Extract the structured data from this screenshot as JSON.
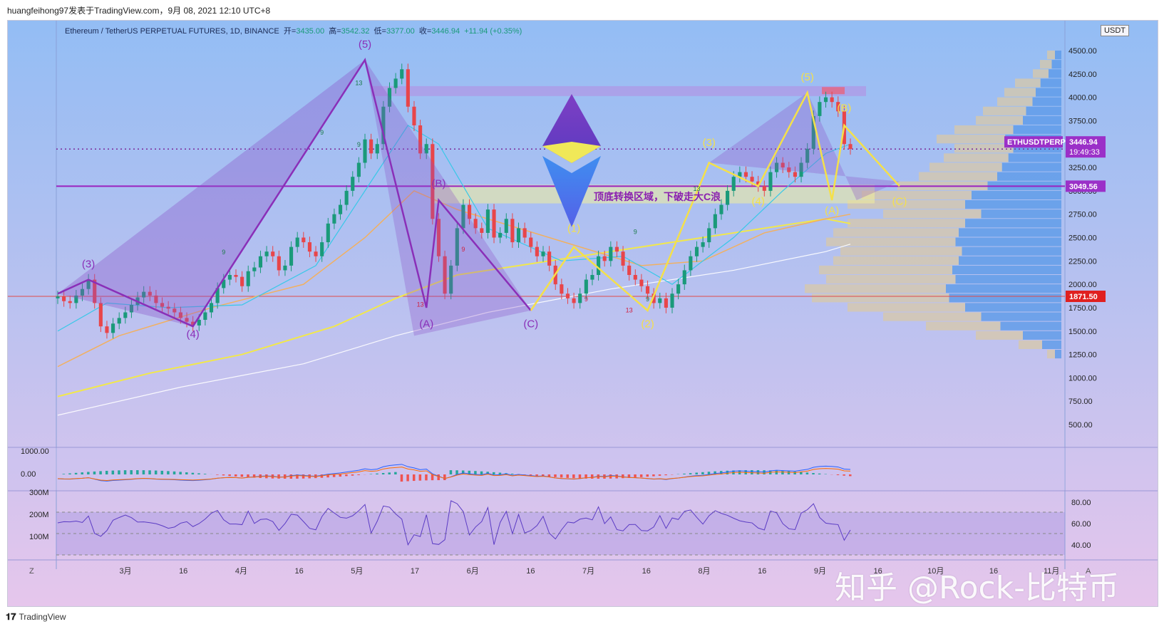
{
  "attribution": "huangfeihong97发表于TradingView.com，9月 08, 2021 12:10 UTC+8",
  "header": {
    "symbol": "Ethereum / TetherUS PERPETUAL FUTURES, 1D, BINANCE",
    "open_label": "开=",
    "open": "3435.00",
    "high_label": "高=",
    "high": "3542.32",
    "low_label": "低=",
    "low": "3377.00",
    "close_label": "收=",
    "close": "3446.94",
    "change": "+11.94 (+0.35%)"
  },
  "currency_button": "USDT",
  "footer": {
    "brand": "TradingView"
  },
  "watermark": "知乎 @Rock-比特币",
  "annotation": "顶底转换区域，下破走大C浪",
  "price_tags": {
    "symbol_tag": "ETHUSDTPERP",
    "last_price": "3446.94",
    "countdown": "19:49:33",
    "level_1": "3049.56",
    "level_2": "1871.50"
  },
  "colors": {
    "bg_top": "#93bdf4",
    "bg_bottom": "#e3c3ec",
    "purple_wave": "#8a2fb8",
    "yellow_wave": "#f4e04a",
    "red_line": "#e04a4a",
    "up_candle": "#1a9a7a",
    "down_candle": "#e8454a",
    "tag_purple": "#9b30c8",
    "tag_red": "#e02020"
  },
  "chart_data": {
    "type": "candlestick",
    "y_axis_ticks": [
      "4500.00",
      "4250.00",
      "4000.00",
      "3750.00",
      "3500.00",
      "3250.00",
      "3000.00",
      "2750.00",
      "2500.00",
      "2250.00",
      "2000.00",
      "1750.00",
      "1500.00",
      "1250.00",
      "1000.00",
      "750.00",
      "500.00"
    ],
    "ylim": [
      500,
      4500
    ],
    "x_axis_ticks": [
      "3月",
      "16",
      "4月",
      "16",
      "5月",
      "17",
      "6月",
      "16",
      "7月",
      "16",
      "8月",
      "16",
      "9月",
      "16",
      "10月",
      "16",
      "11月"
    ],
    "horizontal_levels": [
      3049.56,
      1871.5
    ],
    "last_price": 3446.94,
    "closes": [
      1870,
      1820,
      1800,
      1880,
      1950,
      2050,
      1800,
      1550,
      1480,
      1580,
      1640,
      1700,
      1780,
      1860,
      1920,
      1880,
      1800,
      1760,
      1740,
      1700,
      1640,
      1600,
      1560,
      1620,
      1700,
      1800,
      1960,
      2050,
      2100,
      2080,
      1980,
      2140,
      2180,
      2300,
      2350,
      2300,
      2150,
      2200,
      2400,
      2500,
      2450,
      2350,
      2300,
      2450,
      2650,
      2750,
      2850,
      3000,
      3150,
      3300,
      3550,
      3400,
      3500,
      3900,
      4100,
      4200,
      4300,
      3900,
      3700,
      3400,
      3500,
      2700,
      2300,
      1900,
      2200,
      2600,
      2850,
      2700,
      2600,
      2550,
      2800,
      2500,
      2550,
      2700,
      2450,
      2600,
      2500,
      2400,
      2300,
      2350,
      2200,
      2000,
      1900,
      1850,
      1800,
      1900,
      2050,
      2100,
      2300,
      2250,
      2400,
      2350,
      2200,
      2100,
      2050,
      1980,
      1900,
      1800,
      1850,
      1750,
      1900,
      2000,
      2150,
      2300,
      2400,
      2450,
      2600,
      2750,
      2850,
      3000,
      3150,
      3200,
      3150,
      3100,
      3050,
      3000,
      3200,
      3300,
      3250,
      3200,
      3150,
      3300,
      3450,
      3800,
      3950,
      4000,
      3950,
      3850,
      3500,
      3447
    ],
    "wave_labels_purple": [
      "(3)",
      "(4)",
      "(5)",
      "(A)",
      "(B)",
      "(C)"
    ],
    "wave_labels_yellow": [
      "(1)",
      "(2)",
      "(3)",
      "(4)",
      "(5)",
      "(A)",
      "(B)",
      "(C)"
    ],
    "td_labels": [
      "13",
      "9",
      "9",
      "9",
      "9",
      "9",
      "13",
      "9",
      "13",
      "9",
      "13"
    ],
    "macd_axis": [
      "1000.00",
      "0.00"
    ],
    "volume_axis": [
      "300M",
      "200M",
      "100M"
    ],
    "rsi_axis": [
      "80.00",
      "60.00",
      "40.00"
    ],
    "timeframe_button": "A",
    "zoom_button": "Z"
  }
}
